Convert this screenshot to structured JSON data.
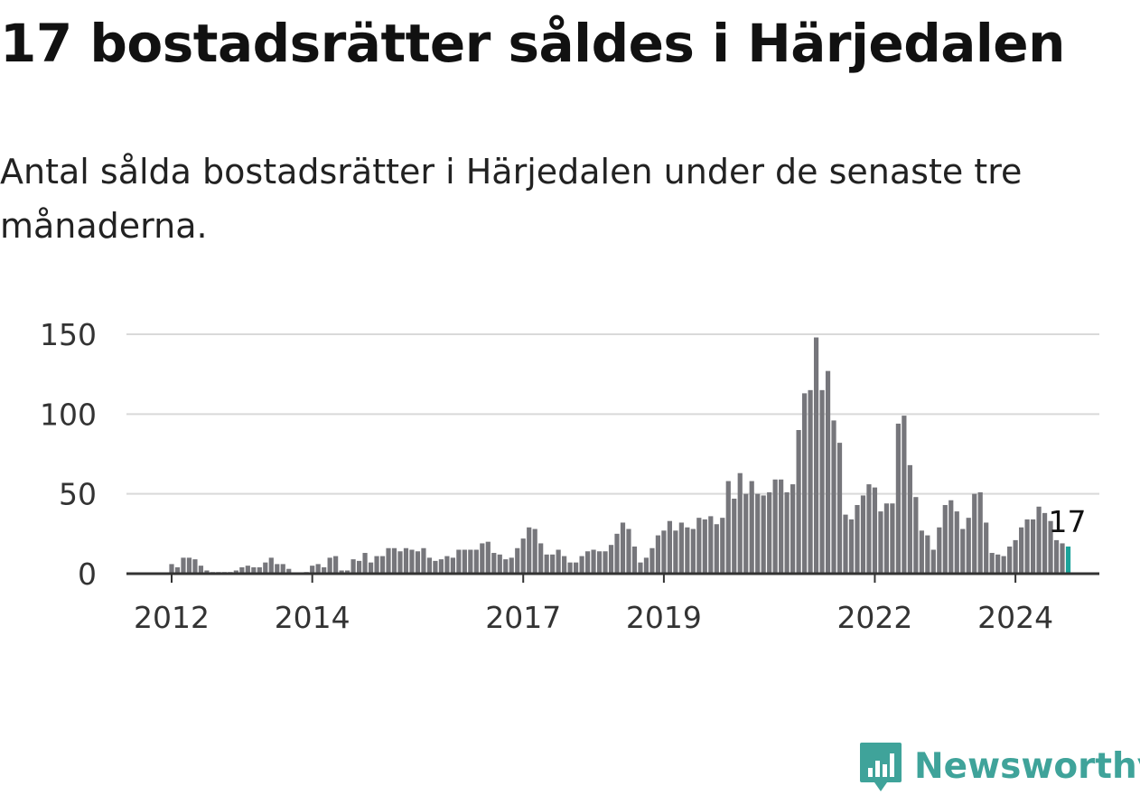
{
  "title": "17 bostadsrätter såldes i Härjedalen",
  "subtitle": "Antal sålda bostadsrätter i Härjedalen under de senaste tre månaderna.",
  "brand": {
    "name": "Newsworthy",
    "icon": "newsworthy-chart-icon",
    "color": "#3fa39a"
  },
  "chart_data": {
    "type": "bar",
    "x_start": "2011-07",
    "x_interval": "month",
    "ylim": [
      0,
      150
    ],
    "yticks": [
      0,
      50,
      100,
      150
    ],
    "xtick_labels": [
      {
        "label": "2012",
        "date": "2012-01"
      },
      {
        "label": "2014",
        "date": "2014-01"
      },
      {
        "label": "2017",
        "date": "2017-01"
      },
      {
        "label": "2019",
        "date": "2019-01"
      },
      {
        "label": "2022",
        "date": "2022-01"
      },
      {
        "label": "2024",
        "date": "2024-01"
      }
    ],
    "grid": true,
    "bar_color": "#76767b",
    "highlight_color": "#1aa39a",
    "highlight_label": "17",
    "values": [
      0,
      0,
      0,
      0,
      0,
      0,
      6,
      4,
      10,
      10,
      9,
      5,
      2,
      1,
      1,
      1,
      1,
      2,
      4,
      5,
      4,
      4,
      7,
      10,
      6,
      6,
      3,
      0,
      0,
      1,
      5,
      6,
      4,
      10,
      11,
      2,
      2,
      9,
      8,
      13,
      7,
      11,
      11,
      16,
      16,
      14,
      16,
      15,
      14,
      16,
      10,
      8,
      9,
      11,
      10,
      15,
      15,
      15,
      15,
      19,
      20,
      13,
      12,
      9,
      10,
      16,
      22,
      29,
      28,
      19,
      12,
      12,
      15,
      11,
      7,
      7,
      11,
      14,
      15,
      14,
      14,
      18,
      25,
      32,
      28,
      17,
      7,
      10,
      16,
      24,
      27,
      33,
      27,
      32,
      29,
      28,
      35,
      34,
      36,
      31,
      35,
      58,
      47,
      63,
      50,
      58,
      50,
      49,
      51,
      59,
      59,
      51,
      56,
      90,
      113,
      115,
      148,
      115,
      127,
      96,
      82,
      37,
      34,
      43,
      49,
      56,
      54,
      39,
      44,
      44,
      94,
      99,
      68,
      48,
      27,
      24,
      15,
      29,
      43,
      46,
      39,
      28,
      35,
      50,
      51,
      32,
      13,
      12,
      11,
      17,
      21,
      29,
      34,
      34,
      42,
      38,
      33,
      21,
      19,
      17
    ]
  }
}
